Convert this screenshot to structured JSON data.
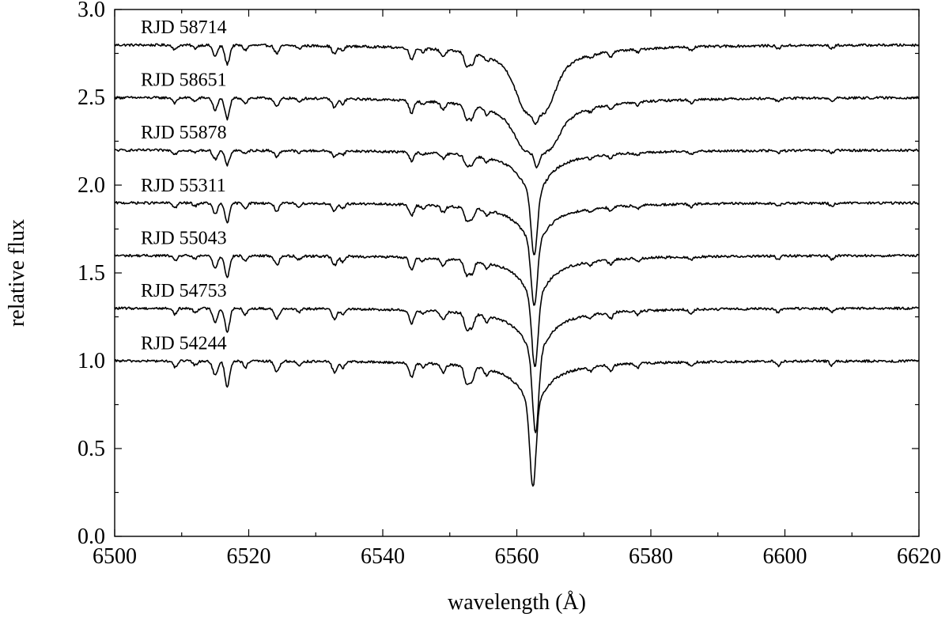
{
  "chart_data": {
    "type": "line",
    "title": "",
    "xlabel": "wavelength (Å)",
    "ylabel": "relative flux",
    "xlim": [
      6500,
      6620
    ],
    "ylim": [
      0.0,
      3.0
    ],
    "xticks": [
      6500,
      6520,
      6540,
      6560,
      6580,
      6600,
      6620
    ],
    "yticks": [
      0.0,
      0.5,
      1.0,
      1.5,
      2.0,
      2.5,
      3.0
    ],
    "ytick_labels": [
      "0.0",
      "0.5",
      "1.0",
      "1.5",
      "2.0",
      "2.5",
      "3.0"
    ],
    "grid": false,
    "lines": [
      {
        "x": [
          6515.0,
          6516.8,
          6524.2,
          6532.8,
          6544.3,
          6549.0,
          6552.5,
          6553.3
        ],
        "depth": [
          0.07,
          0.12,
          0.05,
          0.05,
          0.07,
          0.04,
          0.08,
          0.07
        ],
        "width": 0.35
      },
      {
        "x": [
          6509.0,
          6512.0,
          6519.5,
          6527.5,
          6534.0,
          6546.0,
          6555.5,
          6571.0,
          6574.0,
          6578.0,
          6586.0,
          6599.0,
          6607.0
        ],
        "depth": [
          0.03,
          0.02,
          0.03,
          0.02,
          0.03,
          0.02,
          0.03,
          0.02,
          0.03,
          0.02,
          0.02,
          0.02,
          0.02
        ],
        "width": 0.3
      }
    ],
    "series": [
      {
        "name": "RJD 58714",
        "offset": 1.8,
        "core_center": 6562.8,
        "core_depth": 0.05,
        "core_width": 0.35,
        "wing_depth": 0.3,
        "wing_width": 3.2,
        "plateau": true,
        "metal_scale": 0.9
      },
      {
        "name": "RJD 58651",
        "offset": 1.5,
        "core_center": 6563.0,
        "core_depth": 0.08,
        "core_width": 0.35,
        "wing_depth": 0.22,
        "wing_width": 3.6,
        "plateau": true,
        "metal_scale": 1.0
      },
      {
        "name": "RJD 55878",
        "offset": 1.2,
        "core_center": 6562.6,
        "core_depth": 0.34,
        "core_width": 0.45,
        "wing_depth": 0.22,
        "wing_width": 2.3,
        "plateau": false,
        "metal_scale": 0.7
      },
      {
        "name": "RJD 55311",
        "offset": 0.9,
        "core_center": 6562.6,
        "core_depth": 0.36,
        "core_width": 0.45,
        "wing_depth": 0.19,
        "wing_width": 2.3,
        "plateau": false,
        "metal_scale": 0.9
      },
      {
        "name": "RJD 55043",
        "offset": 0.6,
        "core_center": 6562.7,
        "core_depth": 0.4,
        "core_width": 0.45,
        "wing_depth": 0.2,
        "wing_width": 2.3,
        "plateau": false,
        "metal_scale": 1.0
      },
      {
        "name": "RJD 54753",
        "offset": 0.3,
        "core_center": 6562.8,
        "core_depth": 0.45,
        "core_width": 0.45,
        "wing_depth": 0.22,
        "wing_width": 2.3,
        "plateau": false,
        "metal_scale": 1.1
      },
      {
        "name": "RJD 54244",
        "offset": 0.0,
        "core_center": 6562.4,
        "core_depth": 0.47,
        "core_width": 0.45,
        "wing_depth": 0.21,
        "wing_width": 2.3,
        "plateau": false,
        "metal_scale": 1.2
      }
    ]
  }
}
